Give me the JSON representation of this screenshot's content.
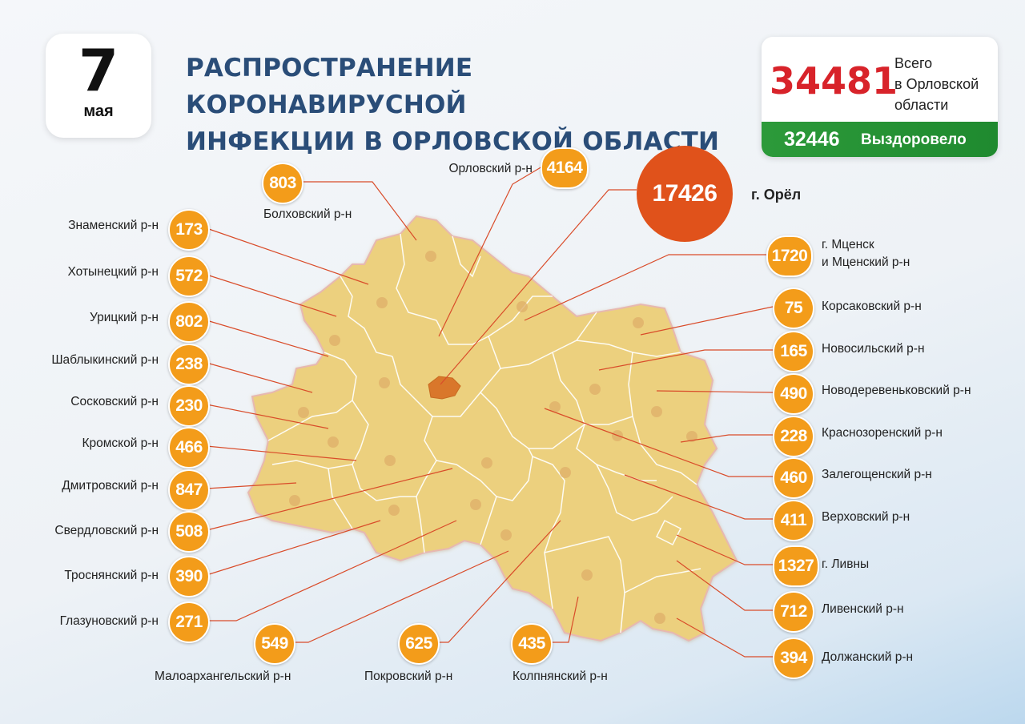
{
  "date": {
    "day": "7",
    "month": "мая"
  },
  "title": {
    "line1": "РАСПРОСТРАНЕНИЕ КОРОНАВИРУСНОЙ",
    "line2": "ИНФЕКЦИИ В ОРЛОВСКОЙ ОБЛАСТИ"
  },
  "totals": {
    "total": "34481",
    "total_label_1": "Всего",
    "total_label_2": "в Орловской",
    "total_label_3": "области",
    "recovered": "32446",
    "recovered_label": "Выздоровело"
  },
  "colors": {
    "badge": "#f39c1a",
    "city_badge": "#e0521b",
    "title": "#2a4d78",
    "total": "#d8232a",
    "recovered_bar": "#2c9a3a",
    "region_fill": "#ecd07e",
    "city_fill": "#d9772b"
  },
  "districts": [
    {
      "name": "Болховский р-н",
      "count": "803"
    },
    {
      "name": "Орловский р-н",
      "count": "4164"
    },
    {
      "name": "г. Орёл",
      "count": "17426"
    },
    {
      "name": "Знаменский р-н",
      "count": "173"
    },
    {
      "name": "Хотынецкий р-н",
      "count": "572"
    },
    {
      "name": "Урицкий р-н",
      "count": "802"
    },
    {
      "name": "Шаблыкинский р-н",
      "count": "238"
    },
    {
      "name": "Сосковский р-н",
      "count": "230"
    },
    {
      "name": "Кромской р-н",
      "count": "466"
    },
    {
      "name": "Дмитровский р-н",
      "count": "847"
    },
    {
      "name": "Свердловский р-н",
      "count": "508"
    },
    {
      "name": "Троснянский р-н",
      "count": "390"
    },
    {
      "name": "Глазуновский р-н",
      "count": "271"
    },
    {
      "name": "Малоархангельский р-н",
      "count": "549"
    },
    {
      "name": "Покровский р-н",
      "count": "625"
    },
    {
      "name": "Колпнянский р-н",
      "count": "435"
    },
    {
      "name": "г. Мценск",
      "name2": "и Мценский р-н",
      "count": "1720"
    },
    {
      "name": "Корсаковский р-н",
      "count": "75"
    },
    {
      "name": "Новосильский р-н",
      "count": "165"
    },
    {
      "name": "Новодеревеньковский р-н",
      "count": "490"
    },
    {
      "name": "Краснозоренский р-н",
      "count": "228"
    },
    {
      "name": "Залегощенский р-н",
      "count": "460"
    },
    {
      "name": "Верховский р-н",
      "count": "411"
    },
    {
      "name": "г. Ливны",
      "count": "1327"
    },
    {
      "name": "Ливенский р-н",
      "count": "712"
    },
    {
      "name": "Должанский р-н",
      "count": "394"
    }
  ]
}
